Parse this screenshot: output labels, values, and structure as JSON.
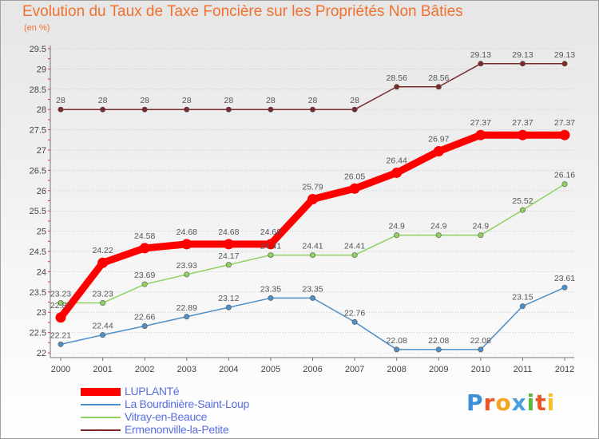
{
  "chart_data": {
    "type": "line",
    "title": "Evolution du Taux de Taxe Foncière sur les Propriétés Non Bâties",
    "subtitle": "(en %)",
    "x": [
      "2000",
      "2001",
      "2002",
      "2003",
      "2004",
      "2005",
      "2006",
      "2007",
      "2008",
      "2009",
      "2010",
      "2011",
      "2012"
    ],
    "ylim": [
      22,
      29.5
    ],
    "yticks": [
      "22",
      "22.5",
      "23",
      "23.5",
      "24",
      "24.5",
      "25",
      "25.5",
      "26",
      "26.5",
      "27",
      "27.5",
      "28",
      "28.5",
      "29",
      "29.5"
    ],
    "grid": "horizontal dotted",
    "legend_position": "bottom-left",
    "series": [
      {
        "name": "LUPLANTé",
        "color": "#ff0000",
        "values": [
          22.87,
          24.22,
          24.58,
          24.68,
          24.68,
          24.68,
          25.79,
          26.05,
          26.44,
          26.97,
          27.37,
          27.37,
          27.37
        ],
        "labels": [
          "22.87",
          "24.22",
          "24.58",
          "24.68",
          "24.68",
          "24.68",
          "25.79",
          "26.05",
          "26.44",
          "26.97",
          "27.37",
          "27.37",
          "27.37"
        ]
      },
      {
        "name": "La Bourdinière-Saint-Loup",
        "color": "#4f8fc8",
        "values": [
          22.21,
          22.44,
          22.66,
          22.89,
          23.12,
          23.35,
          23.35,
          22.76,
          22.08,
          22.08,
          22.08,
          23.15,
          23.61
        ],
        "labels": [
          "22.21",
          "22.44",
          "22.66",
          "22.89",
          "23.12",
          "23.35",
          "23.35",
          "22.76",
          "22.08",
          "22.08",
          "22.08",
          "23.15",
          "23.61"
        ]
      },
      {
        "name": "Vitray-en-Beauce",
        "color": "#90d060",
        "values": [
          23.23,
          23.23,
          23.69,
          23.93,
          24.17,
          24.41,
          24.41,
          24.41,
          24.9,
          24.9,
          24.9,
          25.52,
          26.16
        ],
        "labels": [
          "23.23",
          "23.23",
          "23.69",
          "23.93",
          "24.17",
          "24.41",
          "24.41",
          "24.41",
          "24.9",
          "24.9",
          "24.9",
          "25.52",
          "26.16"
        ]
      },
      {
        "name": "Ermenonville-la-Petite",
        "color": "#7a2a2a",
        "values": [
          28,
          28,
          28,
          28,
          28,
          28,
          28,
          28,
          28.56,
          28.56,
          29.13,
          29.13,
          29.13
        ],
        "labels": [
          "28",
          "28",
          "28",
          "28",
          "28",
          "28",
          "28",
          "28",
          "28.56",
          "28.56",
          "29.13",
          "29.13",
          "29.13"
        ]
      }
    ]
  },
  "brand": {
    "letters": [
      "P",
      "r",
      "o",
      "x",
      "i",
      "t",
      "i"
    ],
    "colors": [
      "#3d8fd6",
      "#e8572a",
      "#f2a51f",
      "#4a9ee0",
      "#5cb83c",
      "#e8572a",
      "#f2c21f"
    ]
  }
}
